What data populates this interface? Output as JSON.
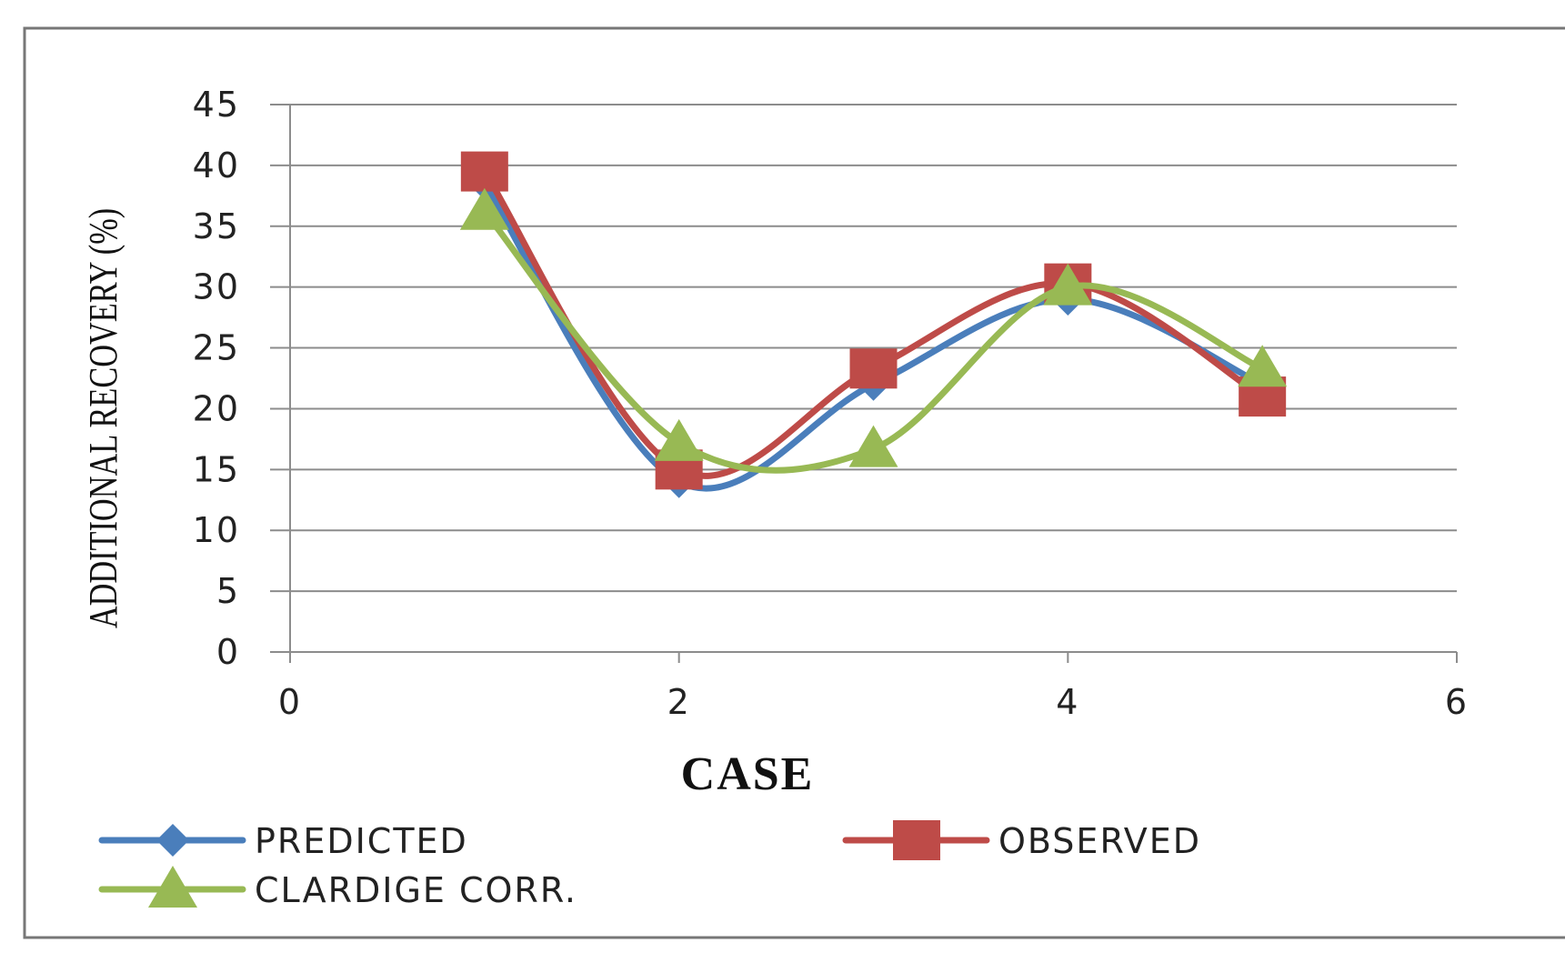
{
  "chart_data": {
    "type": "line",
    "title": "",
    "xlabel": "CASE",
    "ylabel": "ADDITIONAL RECOVERY (%)",
    "xlim": [
      0,
      6
    ],
    "ylim": [
      0,
      45
    ],
    "xticks": [
      0,
      2,
      4,
      6
    ],
    "yticks": [
      0,
      5,
      10,
      15,
      20,
      25,
      30,
      35,
      40,
      45
    ],
    "grid": "horizontal",
    "smooth": true,
    "legend_position": "bottom",
    "series": [
      {
        "name": "PREDICTED",
        "color": "#4a7ebb",
        "marker": "diamond",
        "x": [
          1,
          2,
          3,
          4,
          5
        ],
        "y": [
          38.5,
          14,
          22,
          29,
          22
        ]
      },
      {
        "name": "OBSERVED",
        "color": "#be4b48",
        "marker": "square",
        "x": [
          1,
          2,
          3,
          4,
          5
        ],
        "y": [
          39.5,
          15,
          23.3,
          30.3,
          21
        ]
      },
      {
        "name": "CLARDIGE CORR.",
        "color": "#98b954",
        "marker": "triangle",
        "x": [
          1,
          2,
          3,
          4,
          5
        ],
        "y": [
          36.2,
          17.2,
          16.7,
          30,
          23.3
        ]
      }
    ]
  }
}
